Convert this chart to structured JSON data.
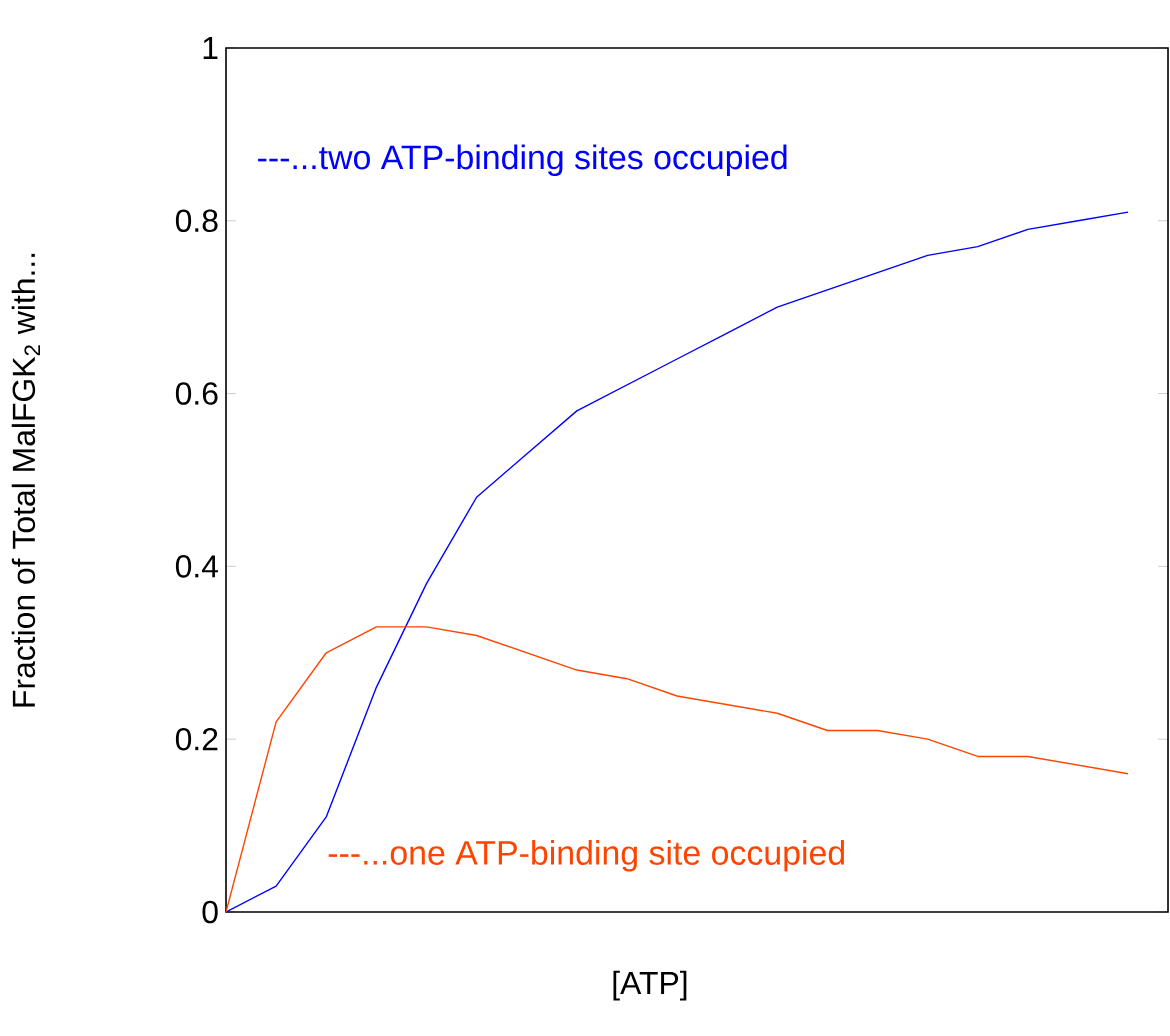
{
  "chart_data": {
    "type": "line",
    "xlabel": "[ATP]",
    "ylabel": "Fraction of Total MalFGK$_{2}$ with...",
    "categories": [
      null,
      null,
      null,
      null,
      null,
      null,
      null,
      null,
      null,
      null,
      null,
      null,
      null,
      null,
      null,
      null,
      null,
      null,
      null
    ],
    "series": [
      {
        "name": "---...two ATP-binding sites occupied",
        "color": "#0000ff",
        "values": [
          0,
          0.03,
          0.11,
          0.26,
          0.38,
          0.48,
          0.53,
          0.58,
          0.61,
          0.64,
          0.67,
          0.7,
          0.72,
          0.74,
          0.76,
          0.77,
          0.79,
          0.8,
          0.81
        ]
      },
      {
        "name": "---...one ATP-binding site occupied",
        "color": "#ff4400",
        "values": [
          0,
          0.22,
          0.3,
          0.33,
          0.33,
          0.32,
          0.3,
          0.28,
          0.27,
          0.25,
          0.24,
          0.23,
          0.21,
          0.21,
          0.2,
          0.18,
          0.18,
          0.17,
          0.16
        ]
      }
    ],
    "ylim": [
      0,
      1
    ],
    "yticks": [
      0,
      0.2,
      0.4,
      0.6,
      0.8,
      1
    ],
    "tick_labels": "y",
    "marker": "none",
    "line_style": "solid"
  }
}
